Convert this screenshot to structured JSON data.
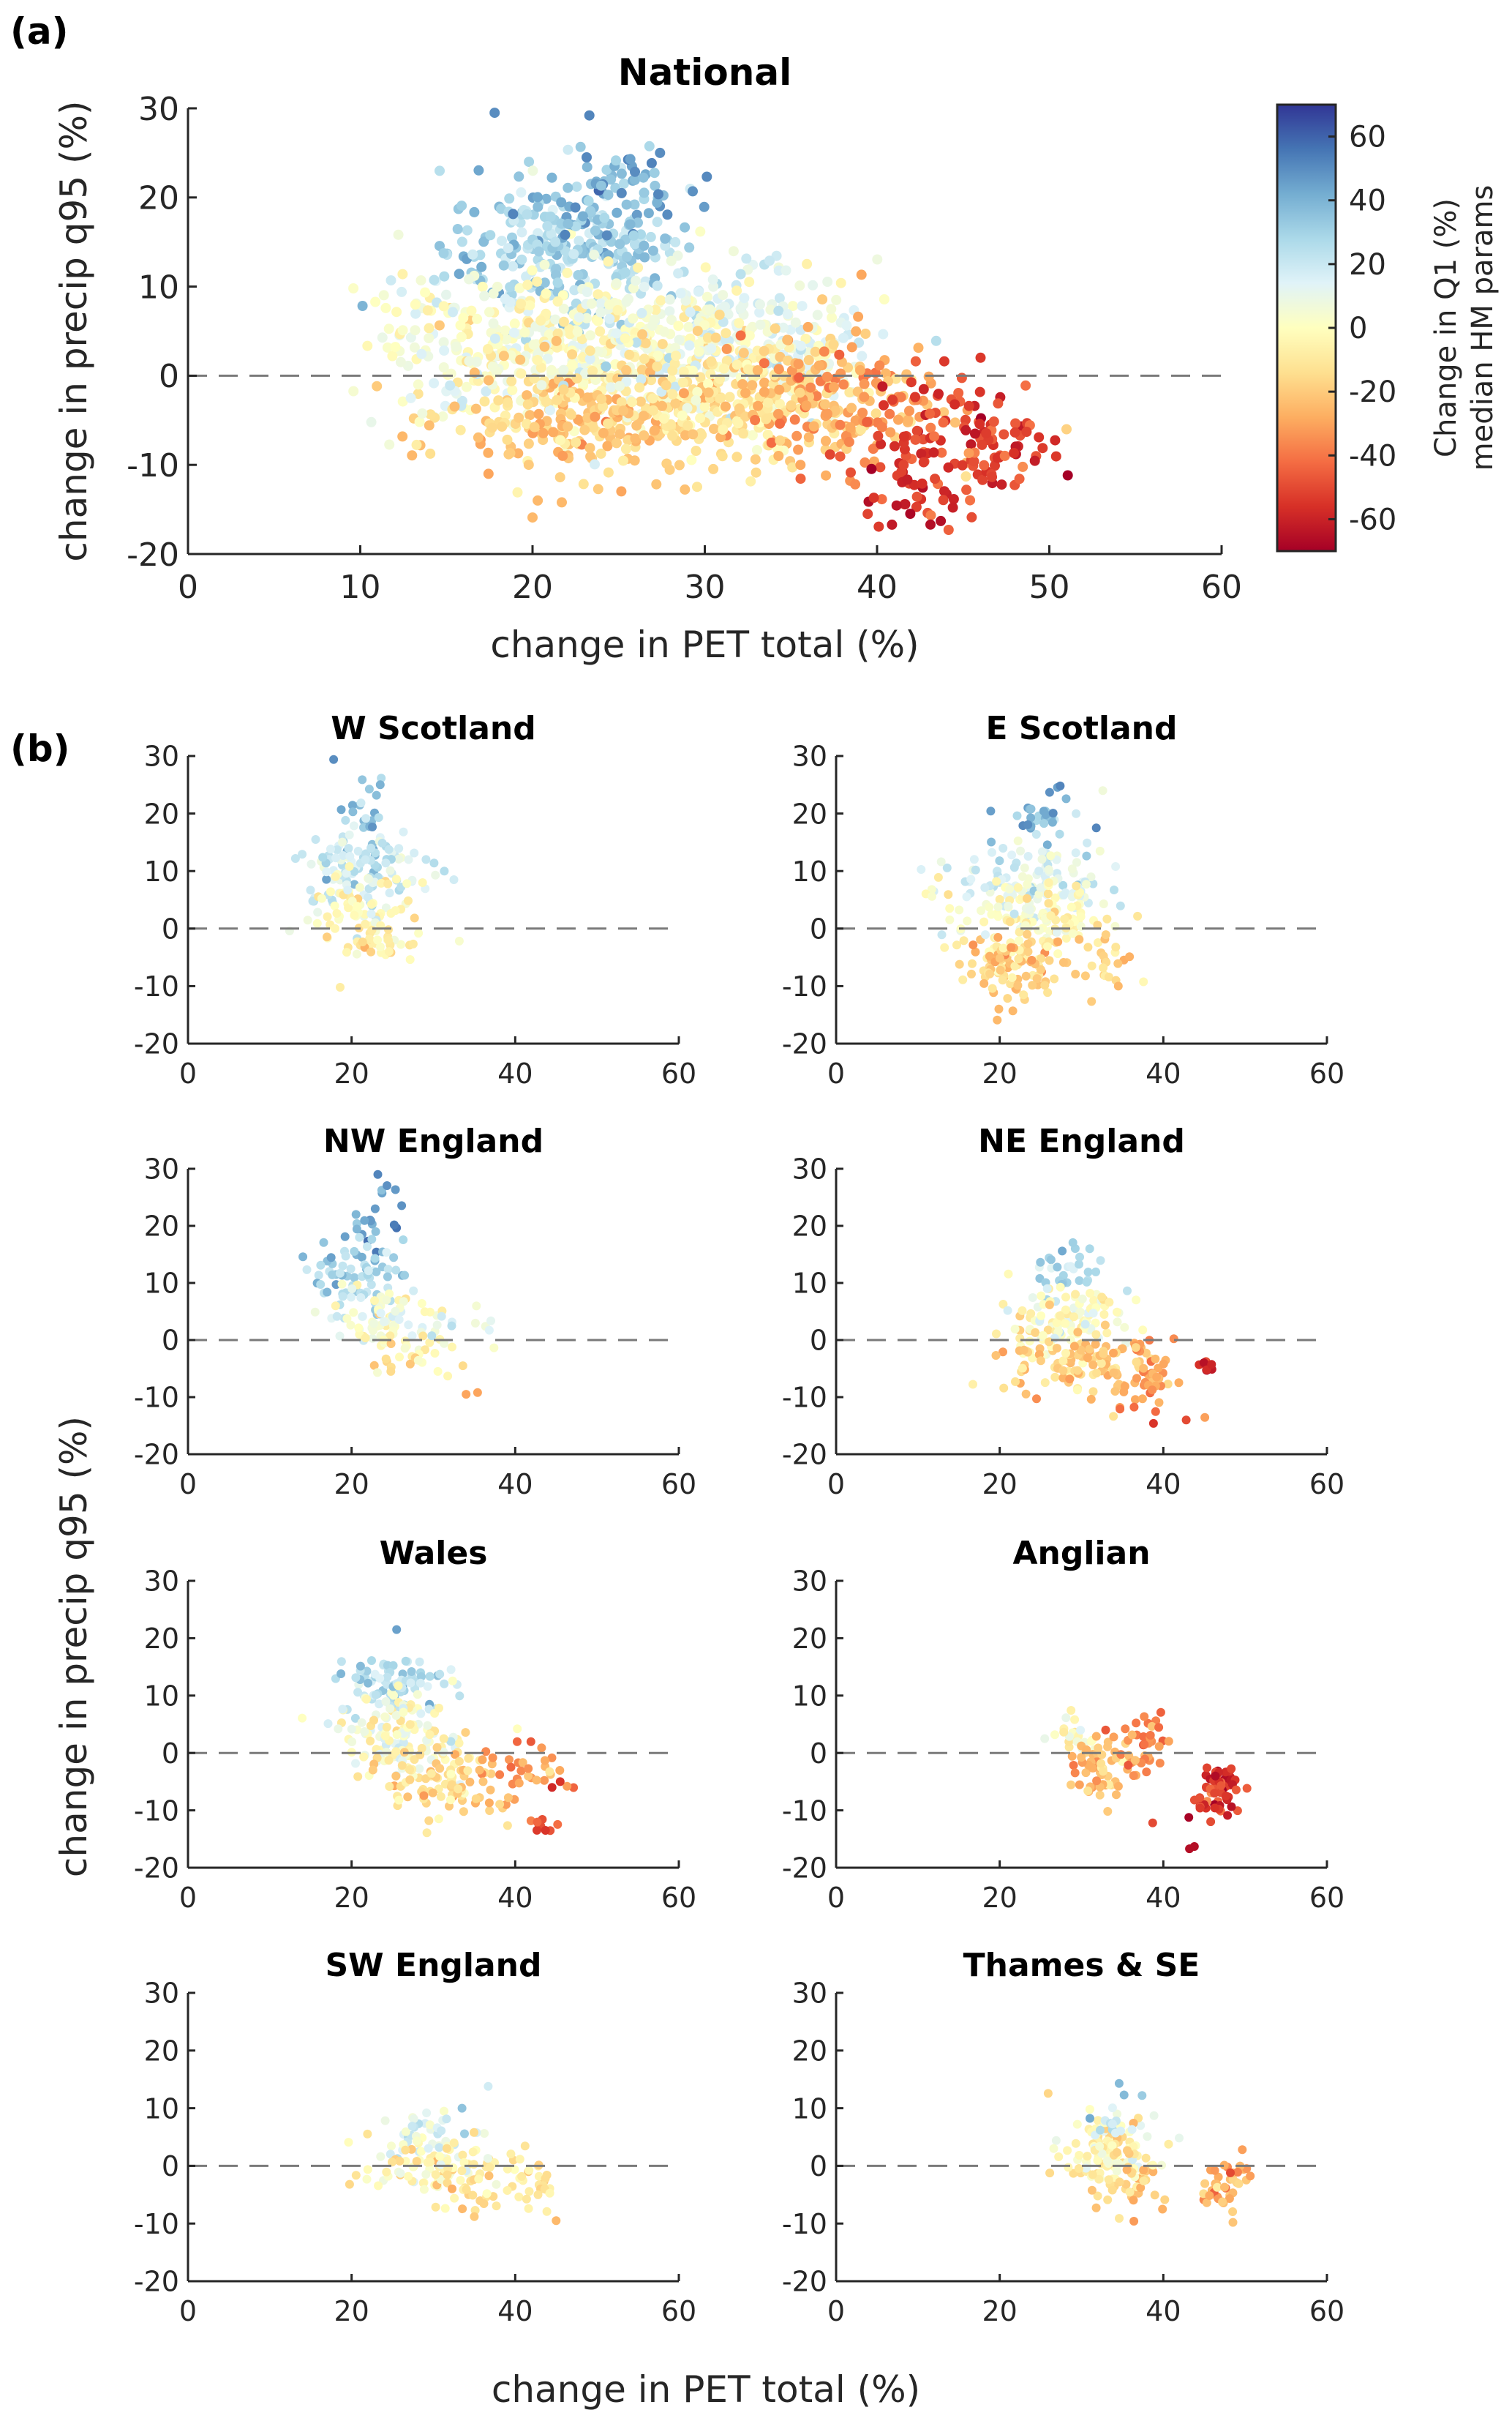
{
  "figure": {
    "panel_a_label": "(a)",
    "panel_b_label": "(b)",
    "shared_xlabel": "change in PET total (%)",
    "shared_ylabel": "change in precip q95 (%)"
  },
  "colorbar": {
    "label_line1": "Change in Q1 (%)",
    "label_line2": "median HM params",
    "range": [
      -70,
      70
    ],
    "ticks": [
      60,
      40,
      20,
      0,
      -20,
      -40,
      -60
    ],
    "tick_labels": [
      "60",
      "40",
      "20",
      "0",
      "-20",
      "-40",
      "-60"
    ],
    "colormap": "RdYlBu",
    "stops": [
      "#a50026",
      "#d73027",
      "#f46d43",
      "#fdae61",
      "#fee090",
      "#ffffbf",
      "#e0f3f8",
      "#abd9e9",
      "#74add1",
      "#4575b4",
      "#313695"
    ]
  },
  "chart_data": [
    {
      "type": "scatter",
      "title": "National",
      "xlabel": "change in PET total (%)",
      "ylabel": "change in precip q95 (%)",
      "xlim": [
        0,
        60
      ],
      "ylim": [
        -20,
        30
      ],
      "xticks": [
        0,
        10,
        20,
        30,
        40,
        50,
        60
      ],
      "yticks": [
        -20,
        -10,
        0,
        10,
        20,
        30
      ],
      "reference_line": {
        "y": 0,
        "style": "dashed"
      },
      "color_by": "Change in Q1 (%)",
      "clusters": [
        {
          "x": 22,
          "y": 14,
          "sx": 3.5,
          "sy": 4,
          "c": 28,
          "n": 260
        },
        {
          "x": 24,
          "y": 20,
          "sx": 2.5,
          "sy": 3,
          "c": 40,
          "n": 80
        },
        {
          "x": 22,
          "y": 3,
          "sx": 5,
          "sy": 4,
          "c": 2,
          "n": 420
        },
        {
          "x": 23,
          "y": -5,
          "sx": 4,
          "sy": 3,
          "c": -20,
          "n": 220
        },
        {
          "x": 32,
          "y": 5,
          "sx": 4,
          "sy": 4,
          "c": 10,
          "n": 240
        },
        {
          "x": 32,
          "y": -3,
          "sx": 4,
          "sy": 3.5,
          "c": -12,
          "n": 260
        },
        {
          "x": 38,
          "y": -3,
          "sx": 3,
          "sy": 4,
          "c": -30,
          "n": 160
        },
        {
          "x": 45,
          "y": -7,
          "sx": 2.5,
          "sy": 3.5,
          "c": -52,
          "n": 120
        },
        {
          "x": 42,
          "y": -12,
          "sx": 2,
          "sy": 2.5,
          "c": -55,
          "n": 35
        },
        {
          "x": 15,
          "y": 4,
          "sx": 2.5,
          "sy": 5,
          "c": 5,
          "n": 60
        }
      ],
      "outliers": [
        {
          "x": 17.8,
          "y": 29.5,
          "c": 50
        },
        {
          "x": 23.3,
          "y": 29.2,
          "c": 52
        },
        {
          "x": 27.4,
          "y": 25,
          "c": 50
        },
        {
          "x": 20,
          "y": -15.9,
          "c": -25
        },
        {
          "x": 20.3,
          "y": -14,
          "c": -25
        },
        {
          "x": 21.7,
          "y": -14.2,
          "c": -25
        },
        {
          "x": 43.1,
          "y": -16.7,
          "c": -66
        },
        {
          "x": 43.7,
          "y": -16.3,
          "c": -66
        },
        {
          "x": 9.6,
          "y": 9.8,
          "c": 2
        },
        {
          "x": 51,
          "y": -6,
          "c": -18
        }
      ]
    },
    {
      "type": "scatter",
      "title": "W Scotland",
      "xlim": [
        0,
        60
      ],
      "ylim": [
        -20,
        30
      ],
      "xticks": [
        0,
        20,
        40,
        60
      ],
      "yticks": [
        -20,
        -10,
        0,
        10,
        20,
        30
      ],
      "reference_line": {
        "y": 0,
        "style": "dashed"
      },
      "clusters": [
        {
          "x": 22,
          "y": 18,
          "sx": 2,
          "sy": 3,
          "c": 35,
          "n": 30
        },
        {
          "x": 21,
          "y": 10,
          "sx": 4,
          "sy": 3.5,
          "c": 18,
          "n": 90
        },
        {
          "x": 22,
          "y": 3,
          "sx": 3.5,
          "sy": 3,
          "c": 0,
          "n": 80
        },
        {
          "x": 23,
          "y": -2,
          "sx": 2,
          "sy": 1.5,
          "c": -10,
          "n": 25
        }
      ],
      "outliers": [
        {
          "x": 17.8,
          "y": 29.4,
          "c": 50
        },
        {
          "x": 23.5,
          "y": 25,
          "c": 40
        },
        {
          "x": 18.6,
          "y": -10.2,
          "c": -8
        },
        {
          "x": 32.5,
          "y": 8.5,
          "c": 18
        }
      ]
    },
    {
      "type": "scatter",
      "title": "E Scotland",
      "xlim": [
        0,
        60
      ],
      "ylim": [
        -20,
        30
      ],
      "xticks": [
        0,
        20,
        40,
        60
      ],
      "yticks": [
        -20,
        -10,
        0,
        10,
        20,
        30
      ],
      "reference_line": {
        "y": 0,
        "style": "dashed"
      },
      "clusters": [
        {
          "x": 25,
          "y": 19,
          "sx": 2.5,
          "sy": 2,
          "c": 38,
          "n": 30
        },
        {
          "x": 24,
          "y": 9,
          "sx": 4.5,
          "sy": 3.5,
          "c": 14,
          "n": 110
        },
        {
          "x": 23,
          "y": 2,
          "sx": 5,
          "sy": 3,
          "c": 0,
          "n": 120
        },
        {
          "x": 22,
          "y": -6,
          "sx": 3,
          "sy": 2.8,
          "c": -18,
          "n": 100
        },
        {
          "x": 33,
          "y": -5,
          "sx": 2,
          "sy": 3,
          "c": -14,
          "n": 25
        }
      ],
      "outliers": [
        {
          "x": 27.4,
          "y": 24.8,
          "c": 52
        },
        {
          "x": 19.7,
          "y": -15.9,
          "c": -25
        },
        {
          "x": 19.9,
          "y": -14,
          "c": -25
        },
        {
          "x": 21.6,
          "y": -14.3,
          "c": -25
        },
        {
          "x": 34.5,
          "y": -10,
          "c": -25
        }
      ]
    },
    {
      "type": "scatter",
      "title": "NW England",
      "xlim": [
        0,
        60
      ],
      "ylim": [
        -20,
        30
      ],
      "xticks": [
        0,
        20,
        40,
        60
      ],
      "yticks": [
        -20,
        -10,
        0,
        10,
        20,
        30
      ],
      "reference_line": {
        "y": 0,
        "style": "dashed"
      },
      "clusters": [
        {
          "x": 23,
          "y": 22,
          "sx": 1.8,
          "sy": 3,
          "c": 45,
          "n": 20
        },
        {
          "x": 21,
          "y": 12,
          "sx": 3,
          "sy": 3,
          "c": 28,
          "n": 70
        },
        {
          "x": 24,
          "y": 4,
          "sx": 3.5,
          "sy": 3,
          "c": 5,
          "n": 80
        },
        {
          "x": 27,
          "y": -2,
          "sx": 3,
          "sy": 2,
          "c": -8,
          "n": 25
        },
        {
          "x": 35,
          "y": 3,
          "sx": 2.5,
          "sy": 2,
          "c": 10,
          "n": 10
        }
      ],
      "outliers": [
        {
          "x": 23.2,
          "y": 29,
          "c": 52
        },
        {
          "x": 34,
          "y": -9.5,
          "c": -30
        },
        {
          "x": 35.4,
          "y": -9.2,
          "c": -30
        },
        {
          "x": 33.6,
          "y": -4.5,
          "c": -15
        },
        {
          "x": 24.8,
          "y": -5.5,
          "c": -15
        }
      ]
    },
    {
      "type": "scatter",
      "title": "NE England",
      "xlim": [
        0,
        60
      ],
      "ylim": [
        -20,
        30
      ],
      "xticks": [
        0,
        20,
        40,
        60
      ],
      "yticks": [
        -20,
        -10,
        0,
        10,
        20,
        30
      ],
      "reference_line": {
        "y": 0,
        "style": "dashed"
      },
      "clusters": [
        {
          "x": 28,
          "y": 12,
          "sx": 2.5,
          "sy": 2.5,
          "c": 25,
          "n": 30
        },
        {
          "x": 27,
          "y": 3,
          "sx": 4,
          "sy": 3,
          "c": 0,
          "n": 130
        },
        {
          "x": 30,
          "y": -4,
          "sx": 4,
          "sy": 2.5,
          "c": -18,
          "n": 90
        },
        {
          "x": 38,
          "y": -6,
          "sx": 2.5,
          "sy": 3.5,
          "c": -30,
          "n": 50
        },
        {
          "x": 45.5,
          "y": -4.5,
          "sx": 0.6,
          "sy": 0.8,
          "c": -55,
          "n": 10
        }
      ],
      "outliers": [
        {
          "x": 31,
          "y": 16,
          "c": 28
        },
        {
          "x": 38.8,
          "y": -14.6,
          "c": -55
        },
        {
          "x": 42.8,
          "y": -14,
          "c": -50
        },
        {
          "x": 24.5,
          "y": -10.3,
          "c": -35
        }
      ]
    },
    {
      "type": "scatter",
      "title": "Wales",
      "xlim": [
        0,
        60
      ],
      "ylim": [
        -20,
        30
      ],
      "xticks": [
        0,
        20,
        40,
        60
      ],
      "yticks": [
        -20,
        -10,
        0,
        10,
        20,
        30
      ],
      "reference_line": {
        "y": 0,
        "style": "dashed"
      },
      "clusters": [
        {
          "x": 25,
          "y": 12,
          "sx": 3,
          "sy": 2.5,
          "c": 25,
          "n": 80
        },
        {
          "x": 26,
          "y": 3,
          "sx": 4,
          "sy": 3.5,
          "c": 2,
          "n": 130
        },
        {
          "x": 30,
          "y": -5,
          "sx": 4,
          "sy": 3,
          "c": -15,
          "n": 90
        },
        {
          "x": 40,
          "y": -4,
          "sx": 3,
          "sy": 2.5,
          "c": -30,
          "n": 40
        },
        {
          "x": 43,
          "y": -12,
          "sx": 1,
          "sy": 1,
          "c": -50,
          "n": 8
        }
      ],
      "outliers": [
        {
          "x": 25.5,
          "y": 21.5,
          "c": 45
        },
        {
          "x": 44.5,
          "y": -6,
          "c": -58
        },
        {
          "x": 45.5,
          "y": -5,
          "c": -55
        },
        {
          "x": 43.7,
          "y": -13.5,
          "c": -55
        }
      ]
    },
    {
      "type": "scatter",
      "title": "Anglian",
      "xlim": [
        0,
        60
      ],
      "ylim": [
        -20,
        30
      ],
      "xticks": [
        0,
        20,
        40,
        60
      ],
      "yticks": [
        -20,
        -10,
        0,
        10,
        20,
        30
      ],
      "reference_line": {
        "y": 0,
        "style": "dashed"
      },
      "clusters": [
        {
          "x": 29,
          "y": 3.5,
          "sx": 1.5,
          "sy": 1.8,
          "c": -2,
          "n": 20
        },
        {
          "x": 33,
          "y": -2.5,
          "sx": 2.2,
          "sy": 2.5,
          "c": -22,
          "n": 60
        },
        {
          "x": 37.5,
          "y": 1,
          "sx": 1.5,
          "sy": 2.5,
          "c": -35,
          "n": 40
        },
        {
          "x": 47,
          "y": -6,
          "sx": 1.3,
          "sy": 2.2,
          "c": -55,
          "n": 45
        },
        {
          "x": 44.5,
          "y": -10,
          "sx": 1.3,
          "sy": 1.5,
          "c": -50,
          "n": 12
        }
      ],
      "outliers": [
        {
          "x": 43.2,
          "y": -16.7,
          "c": -66
        },
        {
          "x": 43.8,
          "y": -16.3,
          "c": -66
        },
        {
          "x": 25.5,
          "y": 2.5,
          "c": 10
        },
        {
          "x": 38.7,
          "y": -12.2,
          "c": -50
        }
      ]
    },
    {
      "type": "scatter",
      "title": "SW England",
      "xlim": [
        0,
        60
      ],
      "ylim": [
        -20,
        30
      ],
      "xticks": [
        0,
        20,
        40,
        60
      ],
      "yticks": [
        -20,
        -10,
        0,
        10,
        20,
        30
      ],
      "reference_line": {
        "y": 0,
        "style": "dashed"
      },
      "clusters": [
        {
          "x": 29,
          "y": 6,
          "sx": 3,
          "sy": 2,
          "c": 15,
          "n": 40
        },
        {
          "x": 30,
          "y": 0,
          "sx": 4,
          "sy": 2.5,
          "c": -4,
          "n": 90
        },
        {
          "x": 35,
          "y": -4,
          "sx": 2,
          "sy": 2.5,
          "c": -14,
          "n": 25
        },
        {
          "x": 42,
          "y": -3,
          "sx": 2,
          "sy": 2.5,
          "c": -12,
          "n": 30
        }
      ],
      "outliers": [
        {
          "x": 36.7,
          "y": 13.8,
          "c": 18
        },
        {
          "x": 33.5,
          "y": 10,
          "c": 35
        },
        {
          "x": 45,
          "y": -9.5,
          "c": -25
        },
        {
          "x": 35,
          "y": -8.8,
          "c": -20
        }
      ]
    },
    {
      "type": "scatter",
      "title": "Thames & SE",
      "xlim": [
        0,
        60
      ],
      "ylim": [
        -20,
        30
      ],
      "xticks": [
        0,
        20,
        40,
        60
      ],
      "yticks": [
        -20,
        -10,
        0,
        10,
        20,
        30
      ],
      "reference_line": {
        "y": 0,
        "style": "dashed"
      },
      "clusters": [
        {
          "x": 33,
          "y": 3,
          "sx": 3,
          "sy": 3,
          "c": -3,
          "n": 110
        },
        {
          "x": 36,
          "y": -3,
          "sx": 2,
          "sy": 2.5,
          "c": -16,
          "n": 40
        },
        {
          "x": 33,
          "y": 7,
          "sx": 2,
          "sy": 1.5,
          "c": 20,
          "n": 12
        },
        {
          "x": 47,
          "y": -4,
          "sx": 1.8,
          "sy": 2.5,
          "c": -25,
          "n": 40
        }
      ],
      "outliers": [
        {
          "x": 34.6,
          "y": 14.3,
          "c": 38
        },
        {
          "x": 35.2,
          "y": 12.3,
          "c": 38
        },
        {
          "x": 37.4,
          "y": 12.2,
          "c": 32
        },
        {
          "x": 36.4,
          "y": -9.6,
          "c": -32
        },
        {
          "x": 48.2,
          "y": -1.2,
          "c": -50
        }
      ]
    }
  ]
}
